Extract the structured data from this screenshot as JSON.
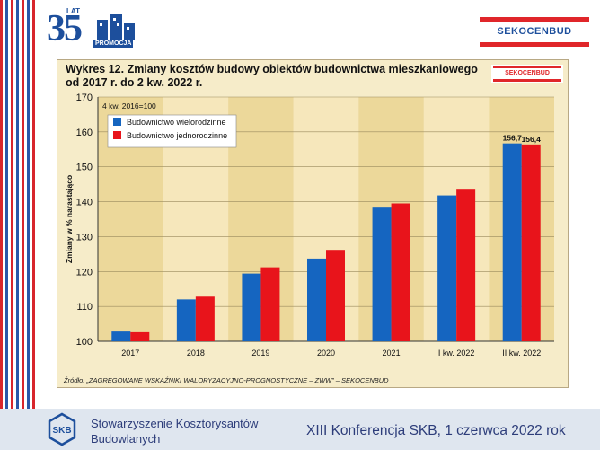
{
  "header": {
    "anniversary_number": "35",
    "anniversary_word": "LAT",
    "promo_label": "PROMOCJA",
    "brand": "SEKOCENBUD"
  },
  "chart_data": {
    "type": "bar",
    "title": "Wykres 12.  Zmiany kosztów budowy obiektów budownictwa mieszkaniowego od 2017 r. do 2 kw. 2022 r.",
    "ylabel": "Zmiany w % narastająco",
    "xlabel": "",
    "ylim": [
      100,
      170
    ],
    "yticks": [
      100,
      110,
      120,
      130,
      140,
      150,
      160,
      170
    ],
    "base_note": "4 kw. 2016=100",
    "categories": [
      "2017",
      "2018",
      "2019",
      "2020",
      "2021",
      "I kw. 2022",
      "II kw. 2022"
    ],
    "series": [
      {
        "name": "Budownictwo wielorodzinne",
        "color": "#1565c0",
        "values": [
          102.8,
          112.0,
          119.4,
          123.7,
          138.3,
          141.8,
          156.7
        ]
      },
      {
        "name": "Budownictwo jednorodzinne",
        "color": "#e8141b",
        "values": [
          102.6,
          112.8,
          121.2,
          126.2,
          139.5,
          143.7,
          156.4
        ]
      }
    ],
    "data_labels": [
      {
        "category": "II kw. 2022",
        "series": 0,
        "text": "156,7"
      },
      {
        "category": "II kw. 2022",
        "series": 1,
        "text": "156,4"
      }
    ],
    "grid": true,
    "legend": "top-left",
    "source": "Źródło: „ZAGREGOWANE WSKAŹNIKI WALORYZACYJNO-PROGNOSTYCZNE – ZWW” – SEKOCENBUD",
    "band_colors": [
      "#ecd89a",
      "#f6e7bb"
    ]
  },
  "footer": {
    "org_name": "Stowarzyszenie Kosztorysantów Budowlanych",
    "conference": "XIII Konferencja SKB, 1 czerwca 2022 rok",
    "logo_text": "SKB"
  }
}
